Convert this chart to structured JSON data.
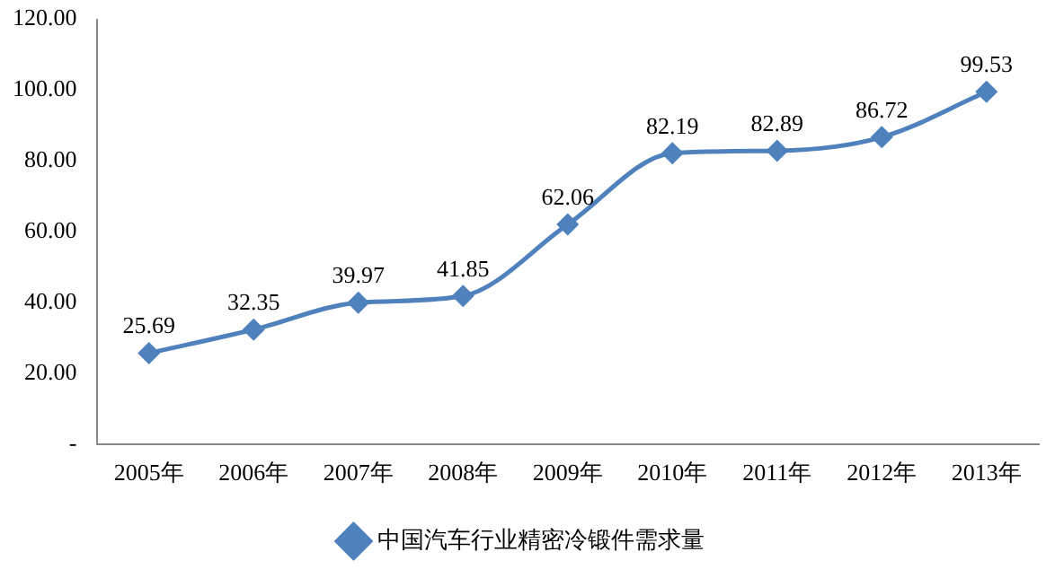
{
  "chart_data": {
    "type": "line",
    "categories": [
      "2005年",
      "2006年",
      "2007年",
      "2008年",
      "2009年",
      "2010年",
      "2011年",
      "2012年",
      "2013年"
    ],
    "series": [
      {
        "name": "中国汽车行业精密冷锻件需求量",
        "color": "#4f81bd",
        "values": [
          25.69,
          32.35,
          39.97,
          41.85,
          62.06,
          82.19,
          82.89,
          86.72,
          99.53
        ]
      }
    ],
    "ylim": [
      0,
      120
    ],
    "yticks": [
      {
        "value": 0,
        "label": "-"
      },
      {
        "value": 20,
        "label": "20.00"
      },
      {
        "value": 40,
        "label": "40.00"
      },
      {
        "value": 60,
        "label": "60.00"
      },
      {
        "value": 80,
        "label": "80.00"
      },
      {
        "value": 100,
        "label": "100.00"
      },
      {
        "value": 120,
        "label": "120.00"
      }
    ],
    "data_labels": true,
    "legend": "bottom",
    "grid": false,
    "marker": "diamond",
    "line_style": "solid"
  }
}
